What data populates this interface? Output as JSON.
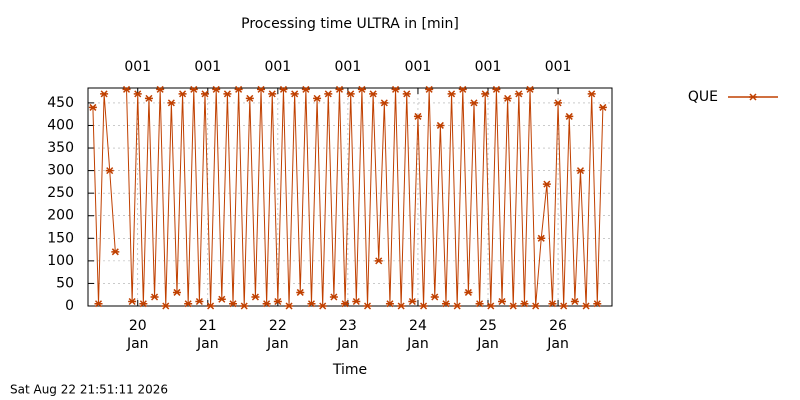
{
  "chart_data": {
    "type": "line",
    "title": "Processing time ULTRA in [min]",
    "xlabel": "Time",
    "footer": "Sat Aug 22 21:51:11 2026",
    "x": [
      19.36,
      19.44,
      19.52,
      19.6,
      19.68,
      19.76,
      19.84,
      19.92,
      20.0,
      20.08,
      20.16,
      20.24,
      20.32,
      20.4,
      20.48,
      20.56,
      20.64,
      20.72,
      20.8,
      20.88,
      20.96,
      21.04,
      21.12,
      21.2,
      21.28,
      21.36,
      21.44,
      21.52,
      21.6,
      21.68,
      21.76,
      21.84,
      21.92,
      22.0,
      22.08,
      22.16,
      22.24,
      22.32,
      22.4,
      22.48,
      22.56,
      22.64,
      22.72,
      22.8,
      22.88,
      22.96,
      23.04,
      23.12,
      23.2,
      23.28,
      23.36,
      23.44,
      23.52,
      23.6,
      23.68,
      23.76,
      23.84,
      23.92,
      24.0,
      24.08,
      24.16,
      24.24,
      24.32,
      24.4,
      24.48,
      24.56,
      24.64,
      24.72,
      24.8,
      24.88,
      24.96,
      25.04,
      25.12,
      25.2,
      25.28,
      25.36,
      25.44,
      25.52,
      25.6,
      25.68,
      25.76,
      25.84,
      25.92,
      26.0,
      26.08,
      26.16,
      26.24,
      26.32,
      26.4,
      26.48,
      26.56,
      26.64
    ],
    "series": [
      {
        "name": "QUE",
        "color": "#c04000",
        "values": [
          440,
          5,
          470,
          300,
          120,
          null,
          480,
          10,
          470,
          5,
          460,
          20,
          480,
          0,
          450,
          30,
          470,
          5,
          480,
          10,
          470,
          0,
          480,
          15,
          470,
          5,
          480,
          0,
          460,
          20,
          480,
          5,
          470,
          10,
          480,
          0,
          470,
          30,
          480,
          5,
          460,
          0,
          470,
          20,
          480,
          5,
          470,
          10,
          480,
          0,
          470,
          100,
          450,
          5,
          480,
          0,
          470,
          10,
          420,
          0,
          480,
          20,
          400,
          5,
          470,
          0,
          480,
          30,
          450,
          5,
          470,
          0,
          480,
          10,
          460,
          0,
          470,
          5,
          480,
          0,
          150,
          270,
          5,
          450,
          0,
          420,
          10,
          300,
          0,
          470,
          5,
          440
        ]
      }
    ],
    "xlim": [
      19.29,
      26.77
    ],
    "ylim": [
      0,
      483
    ],
    "xticks": [
      {
        "value": 20,
        "label": "20 Jan"
      },
      {
        "value": 21,
        "label": "21 Jan"
      },
      {
        "value": 22,
        "label": "22 Jan"
      },
      {
        "value": 23,
        "label": "23 Jan"
      },
      {
        "value": 24,
        "label": "24 Jan"
      },
      {
        "value": 25,
        "label": "25 Jan"
      },
      {
        "value": 26,
        "label": "26 Jan"
      }
    ],
    "x2ticks": [
      {
        "value": 20,
        "label": "001"
      },
      {
        "value": 21,
        "label": "001"
      },
      {
        "value": 22,
        "label": "001"
      },
      {
        "value": 23,
        "label": "001"
      },
      {
        "value": 24,
        "label": "001"
      },
      {
        "value": 25,
        "label": "001"
      },
      {
        "value": 26,
        "label": "001"
      }
    ],
    "yticks": [
      0,
      50,
      100,
      150,
      200,
      250,
      300,
      350,
      400,
      450
    ],
    "grid": true,
    "legend": "top-right"
  }
}
